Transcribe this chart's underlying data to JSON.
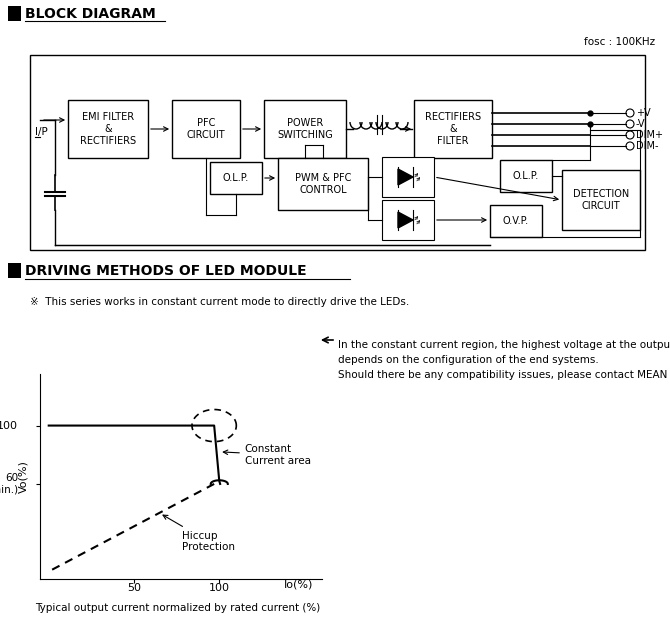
{
  "title1": "BLOCK DIAGRAM",
  "title2": "DRIVING METHODS OF LED MODULE",
  "fosc_label": "fosc : 100KHz",
  "ip_label": "I/P",
  "note": "※  This series works in constant current mode to directly drive the LEDs.",
  "right_text_line1": "In the constant current region, the highest voltage at the output of the driver",
  "right_text_line2": "depends on the configuration of the end systems.",
  "right_text_line3": "Should there be any compatibility issues, please contact MEAN WELL.",
  "caption": "Typical output current normalized by rated current (%)",
  "constant_label": "Constant\nCurrent area",
  "hiccup_label": "Hiccup\nProtection",
  "bg_color": "#ffffff",
  "line_color": "#000000"
}
